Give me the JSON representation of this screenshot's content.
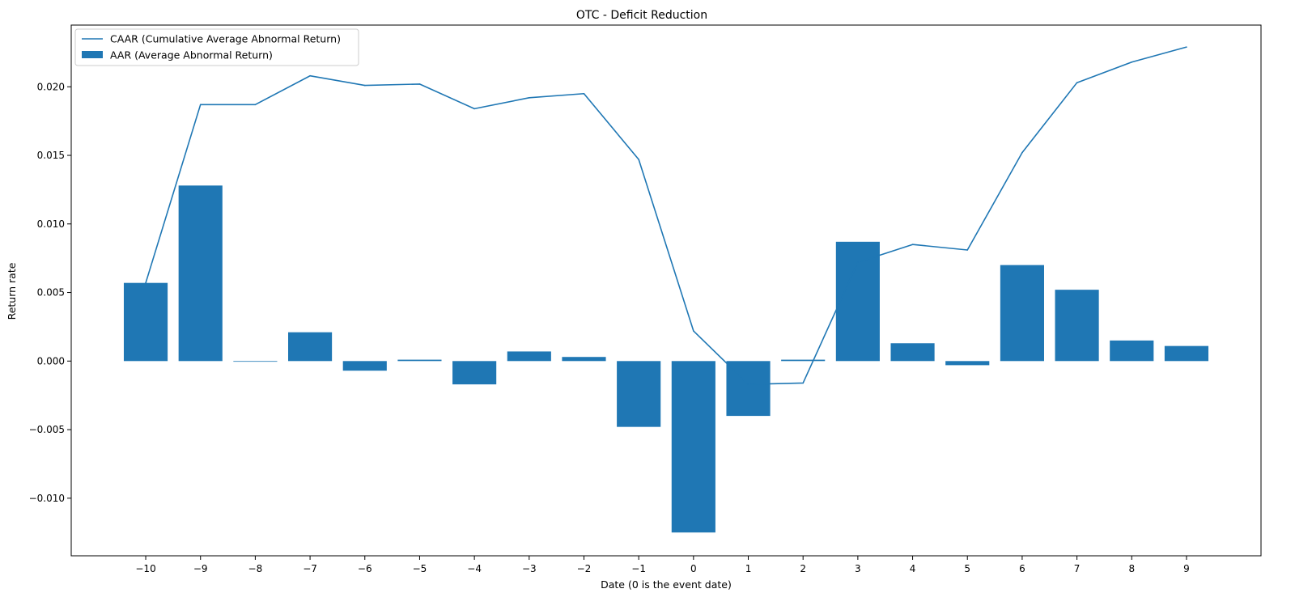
{
  "chart_data": {
    "type": "bar",
    "title": "OTC - Deficit Reduction",
    "xlabel": "Date (0 is the event date)",
    "ylabel": "Return rate",
    "x": [
      -10,
      -9,
      -8,
      -7,
      -6,
      -5,
      -4,
      -3,
      -2,
      -1,
      0,
      1,
      2,
      3,
      4,
      5,
      6,
      7,
      8,
      9
    ],
    "x_tick_labels": [
      "−10",
      "−9",
      "−8",
      "−7",
      "−6",
      "−5",
      "−4",
      "−3",
      "−2",
      "−1",
      "0",
      "1",
      "2",
      "3",
      "4",
      "5",
      "6",
      "7",
      "8",
      "9"
    ],
    "y_ticks": [
      -0.01,
      -0.005,
      0.0,
      0.005,
      0.01,
      0.015,
      0.02
    ],
    "y_tick_labels": [
      "−0.010",
      "−0.005",
      "0.000",
      "0.005",
      "0.010",
      "0.015",
      "0.020"
    ],
    "ylim": [
      -0.0142,
      0.0245
    ],
    "xlim": [
      -11.36,
      10.36
    ],
    "grid": false,
    "legend_position": "top-left",
    "series": [
      {
        "name": "CAAR (Cumulative Average Abnormal Return)",
        "type": "line",
        "color": "#1f77b4",
        "values": [
          0.0057,
          0.0187,
          0.0187,
          0.0208,
          0.0201,
          0.0202,
          0.0184,
          0.0192,
          0.0195,
          0.0147,
          0.0022,
          -0.0017,
          -0.0016,
          0.0072,
          0.0085,
          0.0081,
          0.0152,
          0.0203,
          0.0218,
          0.0229
        ]
      },
      {
        "name": "AAR (Average Abnormal Return)",
        "type": "bar",
        "color": "#1f77b4",
        "values": [
          0.0057,
          0.0128,
          0.0,
          0.0021,
          -0.0007,
          0.0001,
          -0.0017,
          0.0007,
          0.0003,
          -0.0048,
          -0.0125,
          -0.004,
          0.0001,
          0.0087,
          0.0013,
          -0.0003,
          0.007,
          0.0052,
          0.0015,
          0.0011
        ]
      }
    ]
  }
}
